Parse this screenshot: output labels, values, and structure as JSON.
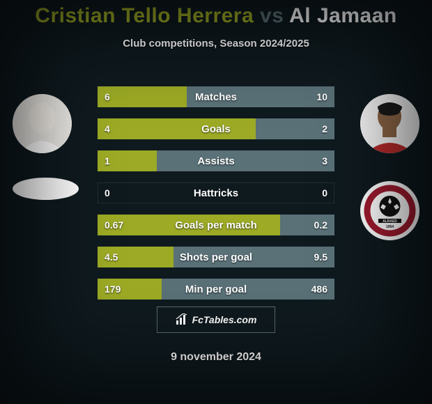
{
  "title": {
    "player1": "Cristian Tello Herrera",
    "vs": "vs",
    "player2": "Al Jamaan"
  },
  "subtitle": "Club competitions, Season 2024/2025",
  "colors": {
    "player1": "#9caa25",
    "vs": "#5a7178",
    "player2": "#ffffff",
    "bar_left": "#9caa25",
    "bar_right": "#5a7178",
    "background": "#0f1a1f",
    "border": "#566a71"
  },
  "bar_config": {
    "track_width": 340,
    "track_height": 30,
    "gap": 16,
    "label_fontsize": 15,
    "value_fontsize": 14
  },
  "stats": [
    {
      "label": "Matches",
      "left_val": "6",
      "right_val": "10",
      "left_num": 6,
      "right_num": 10
    },
    {
      "label": "Goals",
      "left_val": "4",
      "right_val": "2",
      "left_num": 4,
      "right_num": 2
    },
    {
      "label": "Assists",
      "left_val": "1",
      "right_val": "3",
      "left_num": 1,
      "right_num": 3
    },
    {
      "label": "Hattricks",
      "left_val": "0",
      "right_val": "0",
      "left_num": 0,
      "right_num": 0
    },
    {
      "label": "Goals per match",
      "left_val": "0.67",
      "right_val": "0.2",
      "left_num": 0.67,
      "right_num": 0.2
    },
    {
      "label": "Shots per goal",
      "left_val": "4.5",
      "right_val": "9.5",
      "left_num": 4.5,
      "right_num": 9.5
    },
    {
      "label": "Min per goal",
      "left_val": "179",
      "right_val": "486",
      "left_num": 179,
      "right_num": 486
    }
  ],
  "footer": {
    "site": "FcTables.com"
  },
  "date": "9 november 2024"
}
